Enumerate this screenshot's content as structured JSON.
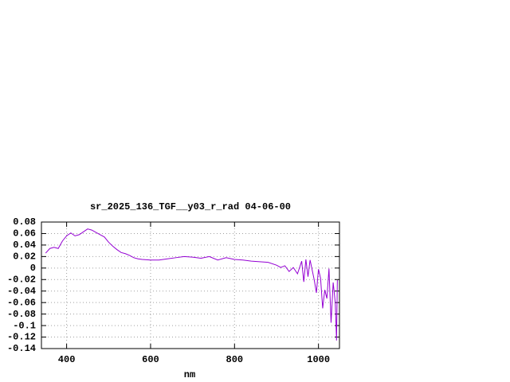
{
  "chart_data": {
    "type": "line",
    "title": "sr_2025_136_TGF__y03_r_rad 04-06-00",
    "x_label": "nm",
    "x": [
      350,
      360,
      370,
      380,
      390,
      400,
      410,
      420,
      430,
      440,
      450,
      460,
      470,
      480,
      490,
      500,
      510,
      520,
      530,
      540,
      550,
      560,
      570,
      580,
      600,
      620,
      640,
      660,
      680,
      700,
      720,
      740,
      760,
      780,
      800,
      820,
      840,
      860,
      880,
      900,
      910,
      920,
      930,
      940,
      950,
      960,
      965,
      970,
      975,
      980,
      990,
      995,
      1000,
      1005,
      1010,
      1015,
      1020,
      1025,
      1030,
      1035,
      1040,
      1043,
      1045
    ],
    "values": [
      0.026,
      0.034,
      0.036,
      0.034,
      0.047,
      0.056,
      0.061,
      0.056,
      0.058,
      0.063,
      0.068,
      0.066,
      0.062,
      0.058,
      0.054,
      0.045,
      0.038,
      0.032,
      0.027,
      0.025,
      0.022,
      0.018,
      0.016,
      0.015,
      0.014,
      0.014,
      0.016,
      0.018,
      0.02,
      0.019,
      0.017,
      0.02,
      0.014,
      0.018,
      0.015,
      0.014,
      0.012,
      0.011,
      0.01,
      0.005,
      0.001,
      0.004,
      -0.006,
      0.001,
      -0.01,
      0.012,
      -0.024,
      0.015,
      -0.015,
      0.014,
      -0.021,
      -0.043,
      -0.002,
      -0.018,
      -0.07,
      -0.038,
      -0.053,
      -0.001,
      -0.095,
      -0.025,
      -0.06,
      -0.126,
      -0.021
    ],
    "color": "#9400d3",
    "xlim": [
      340,
      1050
    ],
    "ylim": [
      -0.14,
      0.08
    ],
    "xticks": [
      400,
      600,
      800,
      1000
    ],
    "yticks": [
      0.08,
      0.06,
      0.04,
      0.02,
      0,
      -0.02,
      -0.04,
      -0.06,
      -0.08,
      -0.1,
      -0.12,
      -0.14
    ],
    "grid": true
  }
}
